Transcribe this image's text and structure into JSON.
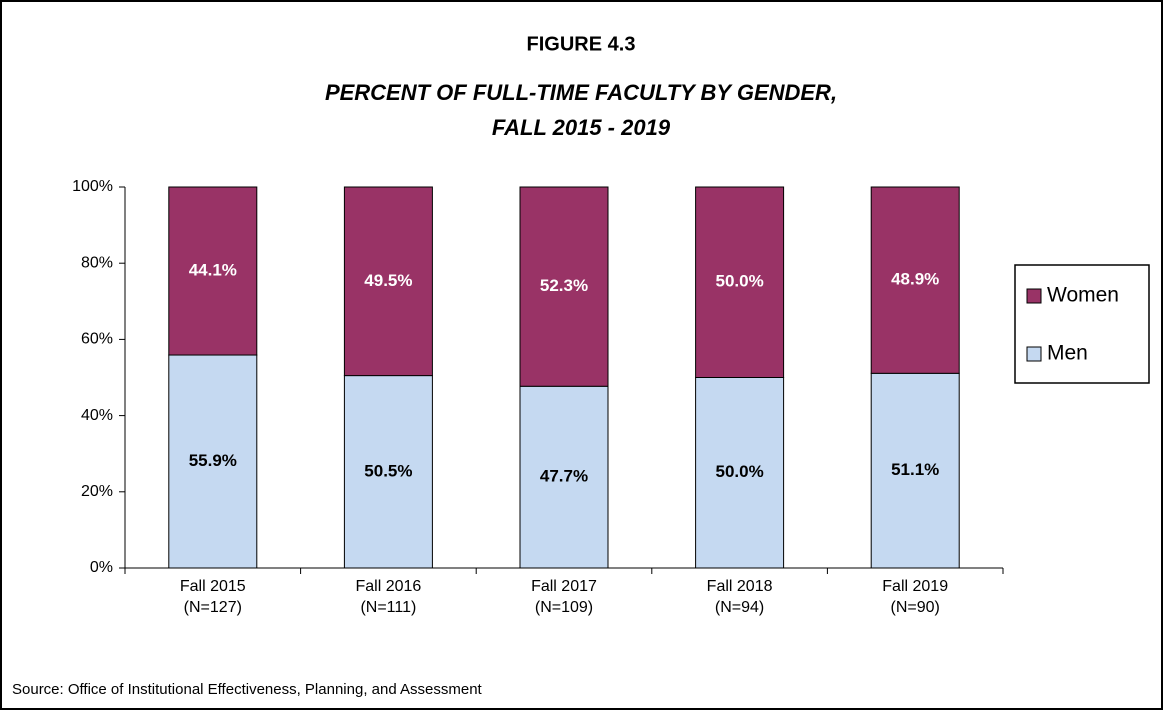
{
  "chart_data": {
    "type": "stacked_bar",
    "figure_label": "FIGURE 4.3",
    "title": [
      "PERCENT OF FULL-TIME FACULTY BY GENDER,",
      "FALL 2015 - 2019"
    ],
    "categories": [
      [
        "Fall 2015",
        "(N=127)"
      ],
      [
        "Fall 2016",
        "(N=111)"
      ],
      [
        "Fall 2017",
        "(N=109)"
      ],
      [
        "Fall 2018",
        "(N=94)"
      ],
      [
        "Fall 2019",
        "(N=90)"
      ]
    ],
    "series": [
      {
        "name": "Men",
        "color": "#c5d9f1",
        "label_color": "#000000",
        "values": [
          55.9,
          50.5,
          47.7,
          50.0,
          51.1
        ],
        "value_labels": [
          "55.9%",
          "50.5%",
          "47.7%",
          "50.0%",
          "51.1%"
        ]
      },
      {
        "name": "Women",
        "color": "#993366",
        "label_color": "#ffffff",
        "values": [
          44.1,
          49.5,
          52.3,
          50.0,
          48.9
        ],
        "value_labels": [
          "44.1%",
          "49.5%",
          "52.3%",
          "50.0%",
          "48.9%"
        ]
      }
    ],
    "ylim": [
      0,
      100
    ],
    "yticks": [
      {
        "value": 0,
        "label": "0%"
      },
      {
        "value": 20,
        "label": "20%"
      },
      {
        "value": 40,
        "label": "40%"
      },
      {
        "value": 60,
        "label": "60%"
      },
      {
        "value": 80,
        "label": "80%"
      },
      {
        "value": 100,
        "label": "100%"
      }
    ],
    "legend": "right",
    "source": "Source: Office of Institutional Effectiveness, Planning, and Assessment"
  }
}
